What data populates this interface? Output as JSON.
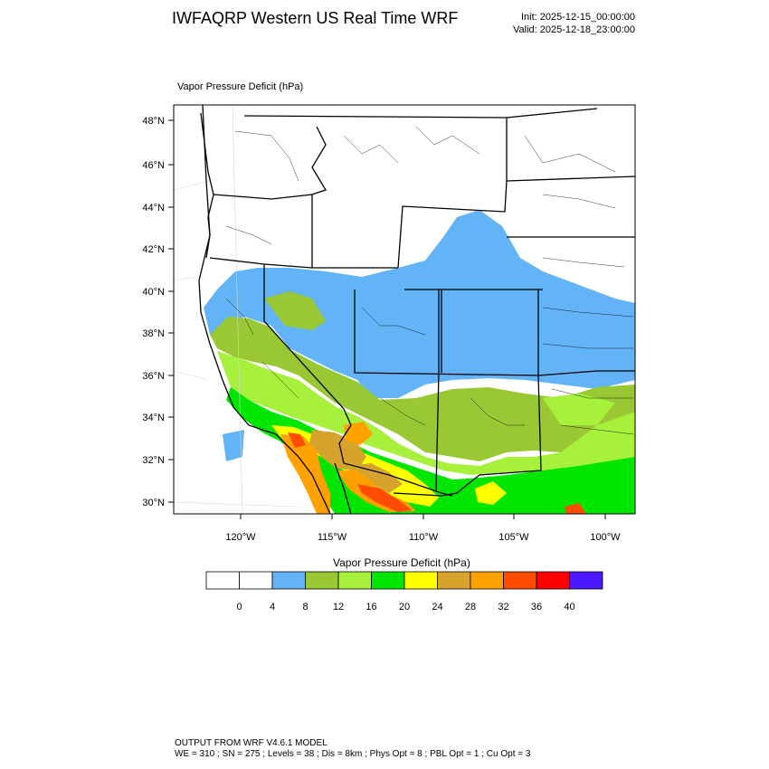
{
  "header": {
    "title": "IWFAQRP Western US Real Time WRF",
    "init": "Init: 2025-12-15_00:00:00",
    "valid": "Valid: 2025-12-18_23:00:00"
  },
  "map": {
    "variable_label": "Vapor Pressure Deficit   (hPa)",
    "lat_labels": [
      "48°N",
      "46°N",
      "44°N",
      "42°N",
      "40°N",
      "38°N",
      "36°N",
      "34°N",
      "32°N",
      "30°N"
    ],
    "lon_labels": [
      "120°W",
      "115°W",
      "110°W",
      "105°W",
      "100°W"
    ]
  },
  "colorbar": {
    "title": "Vapor Pressure Deficit  (hPa)",
    "colors": [
      "#ffffff",
      "#ffffff",
      "#63b4f7",
      "#9ac834",
      "#a7f03c",
      "#00e600",
      "#ffff00",
      "#d6a32c",
      "#ffa200",
      "#ff4c00",
      "#ff0000",
      "#4c18ff"
    ],
    "tick_labels": [
      "0",
      "4",
      "8",
      "12",
      "16",
      "20",
      "24",
      "28",
      "32",
      "36",
      "40"
    ]
  },
  "footer": {
    "line1": "OUTPUT FROM WRF V4.6.1 MODEL",
    "line2": "WE = 310 ; SN = 275 ; Levels = 38 ; Dis = 8km ; Phys Opt = 8 ; PBL Opt = 1 ; Cu Opt = 3"
  }
}
